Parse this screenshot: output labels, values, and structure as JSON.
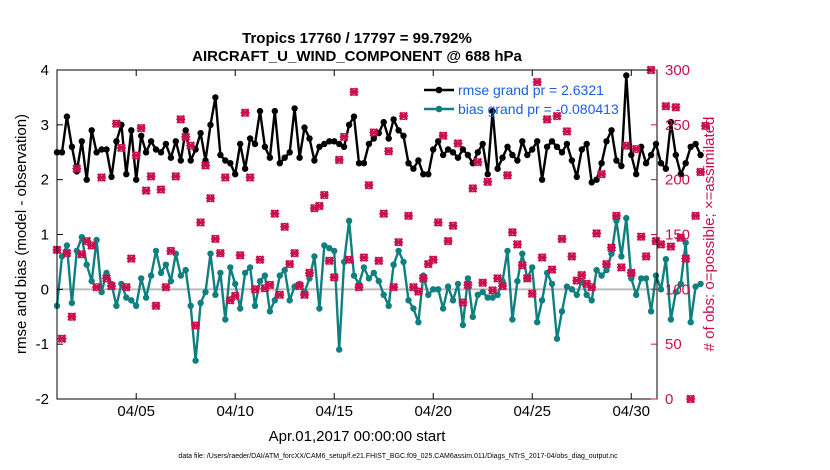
{
  "colors": {
    "rmse": "#000000",
    "bias": "#0f7f7f",
    "obs": "#c8104e",
    "legend_text": "#1a5ee8",
    "zero_line": "#bbbbbb",
    "grid": "#e6e6e6"
  },
  "chart_data": {
    "type": "line",
    "title": "Tropics 17760 / 17797 = 99.792%",
    "subtitle": "AIRCRAFT_U_WIND_COMPONENT @ 688 hPa",
    "xlabel": "Apr.01,2017 00:00:00 start",
    "ylabel": "rmse and bias (model - observation)",
    "ylabel_right": "# of obs: o=possible; ×=assimilated",
    "xlim": [
      1,
      31.3
    ],
    "ylim": [
      -2,
      4
    ],
    "ylim_right": [
      0,
      300
    ],
    "x_ticks": [
      5,
      10,
      15,
      20,
      25,
      30
    ],
    "x_tick_labels": [
      "04/05",
      "04/10",
      "04/15",
      "04/20",
      "04/25",
      "04/30"
    ],
    "y_ticks": [
      "-2",
      "-1",
      "0",
      "1",
      "2",
      "3",
      "4"
    ],
    "y_ticks_right": [
      "0",
      "50",
      "100",
      "150",
      "200",
      "250",
      "300"
    ],
    "x_start": 1.0,
    "x_step": 0.25,
    "series": [
      {
        "name": "rmse grand pr = 2.6321",
        "axis": "left",
        "values": [
          2.5,
          2.5,
          3.15,
          2.6,
          2.15,
          2.7,
          2.0,
          2.9,
          2.5,
          2.55,
          2.55,
          2.05,
          2.7,
          3.0,
          2.1,
          2.9,
          2.0,
          2.8,
          2.5,
          2.7,
          2.55,
          2.5,
          2.65,
          2.4,
          2.7,
          2.35,
          2.9,
          2.35,
          2.55,
          2.85,
          2.35,
          3.0,
          3.5,
          2.45,
          2.35,
          2.3,
          2.1,
          2.65,
          2.2,
          2.75,
          2.65,
          3.25,
          2.6,
          2.4,
          3.25,
          2.3,
          2.4,
          2.5,
          3.3,
          2.4,
          2.95,
          2.75,
          2.35,
          2.6,
          2.65,
          2.7,
          2.7,
          2.65,
          2.6,
          3.0,
          3.15,
          2.3,
          2.3,
          2.65,
          2.75,
          2.85,
          3.05,
          2.75,
          3.1,
          2.9,
          2.8,
          2.3,
          2.2,
          2.35,
          2.1,
          2.1,
          2.55,
          2.7,
          2.45,
          2.55,
          2.5,
          2.4,
          2.55,
          2.45,
          2.3,
          2.5,
          2.65,
          2.1,
          3.25,
          2.2,
          2.4,
          2.6,
          2.45,
          2.35,
          2.7,
          2.45,
          2.55,
          2.7,
          2.0,
          2.6,
          2.7,
          2.6,
          2.5,
          2.65,
          2.35,
          2.05,
          2.55,
          2.65,
          1.95,
          2.0,
          2.3,
          2.7,
          2.9,
          2.35,
          2.25,
          3.9,
          2.45,
          2.1,
          2.6,
          2.3,
          2.45,
          2.65,
          2.3,
          2.2,
          3.05,
          2.45,
          2.1,
          2.3,
          2.6,
          2.65,
          2.45
        ],
        "color": "#000000"
      },
      {
        "name": "bias grand pr = -0.080413",
        "axis": "left",
        "values": [
          -0.3,
          0.6,
          0.8,
          -0.25,
          0.7,
          0.95,
          0.45,
          0.15,
          0.9,
          -0.05,
          0.3,
          0.1,
          -0.3,
          0.1,
          -0.15,
          -0.2,
          -0.3,
          0.2,
          -0.15,
          0.25,
          0.7,
          0.3,
          0.45,
          0.15,
          0.65,
          0.25,
          0.35,
          -0.3,
          -1.3,
          -0.25,
          -0.05,
          0.65,
          -0.1,
          0.3,
          -0.55,
          0.4,
          0.1,
          -0.35,
          0.3,
          0.4,
          -0.3,
          0.15,
          0.25,
          -0.4,
          -0.2,
          0.25,
          0.35,
          -0.2,
          0.05,
          0.1,
          -0.05,
          0.2,
          0.6,
          -0.35,
          0.8,
          0.75,
          0.7,
          -1.1,
          0.5,
          1.25,
          0.25,
          0.1,
          0.4,
          0.2,
          0.3,
          0.15,
          -0.1,
          -0.3,
          0.45,
          0.7,
          0.5,
          -0.2,
          -0.35,
          -0.6,
          0.25,
          -0.1,
          0.0,
          0.0,
          -0.35,
          0.05,
          -0.2,
          0.1,
          -0.65,
          0.2,
          -0.5,
          -0.1,
          -0.05,
          -0.15,
          -0.15,
          -0.1,
          0.15,
          0.7,
          -0.55,
          0.15,
          0.65,
          0.2,
          0.4,
          -0.6,
          -0.2,
          0.3,
          0.1,
          -0.9,
          -0.4,
          0.05,
          0.0,
          -0.1,
          0.15,
          -0.1,
          -0.2,
          0.35,
          0.25,
          0.35,
          0.65,
          1.25,
          0.6,
          1.3,
          0.2,
          -0.1,
          0.2,
          0.2,
          -0.4,
          0.25,
          0.0,
          0.55,
          -0.55,
          -0.05,
          0.1,
          0.85,
          -0.6,
          0.05,
          0.1
        ],
        "color": "#0f7f7f"
      },
      {
        "name": "obs assimilated",
        "axis": "right",
        "marker": "x",
        "values": [
          136,
          55,
          133,
          75,
          210,
          132,
          144,
          140,
          102,
          202,
          110,
          103,
          251,
          229,
          102,
          128,
          222,
          247,
          190,
          203,
          85,
          191,
          102,
          135,
          203,
          255,
          239,
          231,
          67,
          161,
          213,
          183,
          146,
          133,
          202,
          90,
          94,
          131,
          261,
          202,
          100,
          127,
          101,
          104,
          169,
          95,
          157,
          123,
          133,
          103,
          95,
          115,
          174,
          176,
          186,
          126,
          111,
          218,
          239,
          127,
          280,
          102,
          129,
          195,
          243,
          126,
          169,
          226,
          102,
          143,
          258,
          167,
          102,
          98,
          110,
          123,
          127,
          161,
          240,
          144,
          158,
          233,
          88,
          104,
          192,
          216,
          106,
          198,
          99,
          110,
          103,
          204,
          152,
          141,
          122,
          110,
          96,
          289,
          129,
          255,
          118,
          258,
          146,
          244,
          130,
          108,
          113,
          105,
          102,
          151,
          205,
          123,
          138,
          167,
          120,
          231,
          115,
          228,
          148,
          130,
          300,
          144,
          141,
          267,
          139,
          266,
          147,
          128,
          0,
          167,
          207,
          249
        ]
      },
      {
        "name": "obs possible",
        "axis": "right",
        "marker": "o",
        "values": [
          136,
          55,
          133,
          75,
          210,
          132,
          144,
          140,
          102,
          202,
          110,
          103,
          251,
          229,
          102,
          128,
          222,
          247,
          190,
          203,
          85,
          191,
          102,
          135,
          203,
          255,
          239,
          231,
          67,
          161,
          213,
          183,
          146,
          133,
          202,
          90,
          94,
          131,
          261,
          202,
          100,
          127,
          101,
          104,
          169,
          95,
          157,
          123,
          133,
          103,
          95,
          115,
          174,
          176,
          186,
          126,
          111,
          218,
          239,
          127,
          280,
          102,
          129,
          195,
          243,
          126,
          169,
          226,
          102,
          143,
          258,
          167,
          102,
          98,
          110,
          123,
          127,
          161,
          240,
          144,
          158,
          233,
          88,
          104,
          192,
          216,
          106,
          198,
          99,
          110,
          103,
          204,
          152,
          141,
          122,
          110,
          96,
          289,
          129,
          255,
          118,
          258,
          146,
          244,
          130,
          108,
          113,
          105,
          102,
          151,
          205,
          123,
          138,
          167,
          120,
          231,
          115,
          228,
          148,
          130,
          300,
          144,
          141,
          267,
          139,
          266,
          147,
          128,
          0,
          167,
          207,
          249
        ]
      }
    ],
    "legend": [
      "rmse grand pr = 2.6321",
      "bias grand pr = -0.080413"
    ],
    "legend_position": "top-right",
    "grid": false
  },
  "footer": "data file: /Users/raeder/DAI/ATM_forcXX/CAM6_setup/f.e21.FHIST_BGC.f09_025.CAM6assim.011/Diags_NTrS_2017-04/obs_diag_output.nc"
}
